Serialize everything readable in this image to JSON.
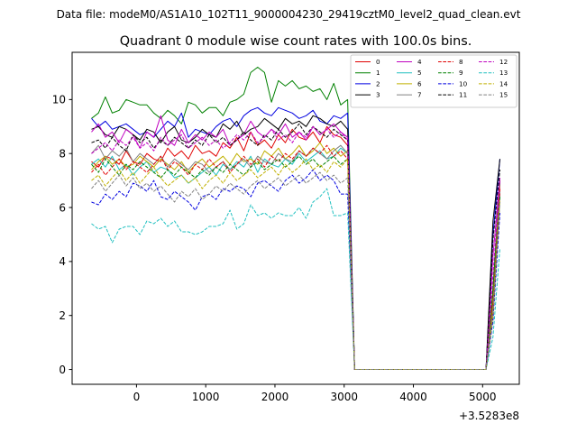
{
  "figure": {
    "suptitle": "Data file: modeM0/AS1A10_102T11_9000004230_29419cztM0_level2_quad_clean.evt"
  },
  "chart_data": {
    "type": "line",
    "title": "Quadrant 0 module wise count rates with 100.0s bins.",
    "xlabel": "",
    "ylabel": "",
    "x_offset_label": "+3.5283e8",
    "x_offset": 352830000,
    "xlim": [
      -930,
      5530
    ],
    "ylim": [
      -0.55,
      11.75
    ],
    "xticks": [
      0,
      1000,
      2000,
      3000,
      4000,
      5000
    ],
    "yticks": [
      0,
      2,
      4,
      6,
      8,
      10
    ],
    "grid": false,
    "legend_position": "top-right",
    "legend_columns": 4,
    "x": [
      -650,
      -550,
      -450,
      -350,
      -250,
      -150,
      -50,
      50,
      150,
      250,
      350,
      450,
      550,
      650,
      750,
      850,
      950,
      1050,
      1150,
      1250,
      1350,
      1450,
      1550,
      1650,
      1750,
      1850,
      1950,
      2050,
      2150,
      2250,
      2350,
      2450,
      2550,
      2650,
      2750,
      2850,
      2950,
      3050,
      3150,
      3250,
      3350,
      3450,
      3550,
      3650,
      3750,
      3850,
      3950,
      4050,
      4150,
      4250,
      4350,
      4450,
      4550,
      4650,
      4750,
      4850,
      4950,
      5050,
      5150,
      5250
    ],
    "series": [
      {
        "name": "0",
        "color": "#e00000",
        "dash": "solid",
        "values": [
          7.7,
          7.5,
          7.9,
          7.8,
          7.6,
          8.1,
          7.7,
          7.6,
          8.0,
          7.8,
          7.7,
          8.2,
          7.9,
          8.1,
          7.8,
          8.3,
          8.0,
          8.1,
          7.9,
          8.4,
          8.2,
          8.6,
          8.1,
          8.8,
          8.3,
          8.5,
          8.2,
          8.7,
          8.4,
          8.9,
          8.6,
          8.5,
          8.8,
          8.4,
          9.0,
          8.7,
          8.6,
          8.3,
          0,
          0,
          0,
          0,
          0,
          0,
          0,
          0,
          0,
          0,
          0,
          0,
          0,
          0,
          0,
          0,
          0,
          0,
          0,
          0,
          2.6,
          7.0
        ]
      },
      {
        "name": "1",
        "color": "#008000",
        "dash": "solid",
        "values": [
          9.3,
          9.5,
          10.1,
          9.5,
          9.6,
          10.0,
          9.9,
          9.8,
          9.8,
          9.5,
          9.3,
          9.6,
          9.4,
          9.1,
          9.9,
          9.8,
          9.5,
          9.7,
          9.7,
          9.4,
          9.9,
          10.0,
          10.2,
          11.0,
          11.2,
          11.0,
          9.9,
          10.7,
          10.5,
          10.7,
          10.4,
          10.5,
          10.3,
          10.4,
          10.0,
          10.6,
          9.8,
          10.0,
          0,
          0,
          0,
          0,
          0,
          0,
          0,
          0,
          0,
          0,
          0,
          0,
          0,
          0,
          0,
          0,
          0,
          0,
          0,
          0,
          3.0,
          7.0
        ]
      },
      {
        "name": "2",
        "color": "#0000e0",
        "dash": "solid",
        "values": [
          9.3,
          9.0,
          9.2,
          8.9,
          9.0,
          9.1,
          8.9,
          8.7,
          8.8,
          8.6,
          8.9,
          9.2,
          9.0,
          9.5,
          8.6,
          8.9,
          8.8,
          8.7,
          9.0,
          9.2,
          9.3,
          9.0,
          9.4,
          9.6,
          9.7,
          9.5,
          9.4,
          9.7,
          9.6,
          9.5,
          9.3,
          9.4,
          9.6,
          9.2,
          9.1,
          9.4,
          9.3,
          9.5,
          0,
          0,
          0,
          0,
          0,
          0,
          0,
          0,
          0,
          0,
          0,
          0,
          0,
          0,
          0,
          0,
          0,
          0,
          0,
          0,
          5.0,
          7.8
        ]
      },
      {
        "name": "3",
        "color": "#000000",
        "dash": "solid",
        "values": [
          8.9,
          9.0,
          8.7,
          8.6,
          9.0,
          8.9,
          8.7,
          8.5,
          8.9,
          8.8,
          8.4,
          8.8,
          9.0,
          8.5,
          8.4,
          8.6,
          8.9,
          8.7,
          8.6,
          9.1,
          8.9,
          9.2,
          8.7,
          8.9,
          9.0,
          9.3,
          9.1,
          8.9,
          9.3,
          9.1,
          9.2,
          9.0,
          9.4,
          9.3,
          9.1,
          9.0,
          9.2,
          8.9,
          0,
          0,
          0,
          0,
          0,
          0,
          0,
          0,
          0,
          0,
          0,
          0,
          0,
          0,
          0,
          0,
          0,
          0,
          0,
          0,
          5.5,
          7.8
        ]
      },
      {
        "name": "4",
        "color": "#c000c0",
        "dash": "solid",
        "values": [
          8.8,
          9.1,
          8.6,
          8.8,
          8.4,
          8.9,
          8.7,
          8.2,
          8.8,
          8.6,
          9.4,
          8.5,
          8.3,
          8.9,
          8.4,
          8.7,
          8.5,
          8.8,
          8.6,
          8.9,
          8.3,
          8.5,
          8.7,
          9.2,
          8.8,
          8.6,
          8.9,
          8.7,
          9.1,
          8.6,
          8.8,
          8.5,
          9.0,
          8.7,
          8.9,
          9.1,
          8.8,
          8.6,
          0,
          0,
          0,
          0,
          0,
          0,
          0,
          0,
          0,
          0,
          0,
          0,
          0,
          0,
          0,
          0,
          0,
          0,
          0,
          0,
          4.2,
          7.1
        ]
      },
      {
        "name": "5",
        "color": "#20c0c0",
        "dash": "solid",
        "values": [
          7.6,
          7.8,
          7.5,
          7.9,
          7.4,
          7.6,
          7.2,
          7.5,
          7.7,
          7.3,
          7.5,
          7.4,
          7.1,
          7.2,
          6.9,
          7.1,
          7.3,
          7.5,
          7.2,
          7.6,
          7.4,
          7.7,
          7.5,
          7.9,
          7.3,
          7.8,
          7.6,
          7.5,
          7.8,
          7.6,
          8.0,
          7.7,
          7.9,
          8.1,
          7.8,
          7.9,
          8.2,
          8.0,
          0,
          0,
          0,
          0,
          0,
          0,
          0,
          0,
          0,
          0,
          0,
          0,
          0,
          0,
          0,
          0,
          0,
          0,
          0,
          0,
          2.0,
          6.5
        ]
      },
      {
        "name": "6",
        "color": "#c0b000",
        "dash": "solid",
        "values": [
          7.4,
          7.7,
          7.9,
          7.6,
          7.8,
          7.5,
          7.6,
          7.9,
          7.7,
          7.5,
          7.8,
          7.6,
          7.4,
          7.7,
          7.3,
          7.6,
          7.8,
          7.5,
          7.7,
          7.9,
          7.6,
          8.0,
          7.7,
          7.8,
          7.6,
          8.1,
          7.9,
          8.2,
          7.8,
          8.0,
          8.3,
          7.9,
          8.1,
          8.4,
          8.0,
          8.2,
          7.9,
          8.1,
          0,
          0,
          0,
          0,
          0,
          0,
          0,
          0,
          0,
          0,
          0,
          0,
          0,
          0,
          0,
          0,
          0,
          0,
          0,
          0,
          2.3,
          6.8
        ]
      },
      {
        "name": "7",
        "color": "#808080",
        "dash": "solid",
        "values": [
          8.0,
          8.3,
          7.8,
          8.1,
          7.9,
          8.2,
          7.7,
          8.0,
          7.8,
          7.6,
          7.9,
          7.5,
          7.8,
          7.6,
          7.4,
          7.7,
          7.6,
          7.3,
          7.5,
          7.7,
          7.4,
          7.6,
          7.8,
          7.5,
          7.9,
          7.7,
          7.6,
          8.0,
          7.8,
          7.7,
          8.1,
          7.9,
          8.2,
          8.0,
          7.8,
          8.1,
          8.3,
          8.0,
          0,
          0,
          0,
          0,
          0,
          0,
          0,
          0,
          0,
          0,
          0,
          0,
          0,
          0,
          0,
          0,
          0,
          0,
          0,
          0,
          2.2,
          6.6
        ]
      },
      {
        "name": "8",
        "color": "#e00000",
        "dash": "dashed",
        "values": [
          7.3,
          7.6,
          7.2,
          7.5,
          7.8,
          7.4,
          7.7,
          7.5,
          7.3,
          7.6,
          7.9,
          7.4,
          7.7,
          7.5,
          7.2,
          7.6,
          7.4,
          7.8,
          7.5,
          7.7,
          7.3,
          7.6,
          7.9,
          7.6,
          7.8,
          7.5,
          7.9,
          7.7,
          8.0,
          7.8,
          8.1,
          7.9,
          8.2,
          8.0,
          8.3,
          7.9,
          8.1,
          7.8,
          0,
          0,
          0,
          0,
          0,
          0,
          0,
          0,
          0,
          0,
          0,
          0,
          0,
          0,
          0,
          0,
          0,
          0,
          0,
          0,
          2.1,
          6.7
        ]
      },
      {
        "name": "9",
        "color": "#008000",
        "dash": "dashed",
        "values": [
          7.6,
          7.3,
          7.8,
          7.5,
          7.2,
          7.6,
          7.4,
          7.7,
          7.5,
          7.3,
          7.1,
          7.4,
          7.2,
          7.5,
          7.3,
          7.1,
          7.4,
          7.2,
          7.5,
          7.3,
          7.6,
          7.4,
          7.2,
          7.5,
          7.7,
          7.4,
          7.6,
          7.8,
          7.5,
          7.7,
          7.9,
          7.6,
          7.8,
          7.5,
          7.7,
          7.9,
          7.6,
          7.8,
          0,
          0,
          0,
          0,
          0,
          0,
          0,
          0,
          0,
          0,
          0,
          0,
          0,
          0,
          0,
          0,
          0,
          0,
          0,
          0,
          2.0,
          6.4
        ]
      },
      {
        "name": "10",
        "color": "#0000e0",
        "dash": "dashed",
        "values": [
          6.2,
          6.1,
          6.5,
          6.3,
          6.6,
          6.4,
          6.9,
          6.8,
          6.6,
          7.0,
          6.4,
          6.3,
          6.6,
          6.4,
          6.2,
          5.9,
          6.4,
          6.5,
          6.3,
          6.7,
          6.6,
          6.8,
          6.7,
          6.4,
          6.9,
          7.0,
          6.8,
          6.6,
          7.0,
          7.2,
          6.9,
          7.1,
          7.4,
          7.0,
          7.2,
          7.0,
          6.5,
          6.5,
          0,
          0,
          0,
          0,
          0,
          0,
          0,
          0,
          0,
          0,
          0,
          0,
          0,
          0,
          0,
          0,
          0,
          0,
          0,
          0,
          1.8,
          5.8
        ]
      },
      {
        "name": "11",
        "color": "#000000",
        "dash": "dashed",
        "values": [
          8.4,
          8.5,
          8.2,
          8.6,
          8.3,
          8.1,
          8.7,
          8.4,
          8.6,
          8.2,
          8.5,
          8.3,
          8.6,
          8.4,
          8.2,
          8.5,
          8.3,
          8.7,
          8.4,
          8.6,
          8.3,
          8.5,
          8.8,
          8.5,
          8.3,
          8.7,
          8.5,
          8.9,
          8.6,
          8.8,
          9.1,
          8.7,
          9.0,
          8.8,
          8.6,
          8.9,
          8.7,
          8.5,
          0,
          0,
          0,
          0,
          0,
          0,
          0,
          0,
          0,
          0,
          0,
          0,
          0,
          0,
          0,
          0,
          0,
          0,
          0,
          0,
          4.8,
          7.4
        ]
      },
      {
        "name": "12",
        "color": "#c000c0",
        "dash": "dashed",
        "values": [
          8.0,
          8.2,
          8.4,
          8.1,
          8.5,
          8.3,
          8.6,
          8.2,
          8.4,
          8.1,
          8.6,
          8.3,
          8.5,
          8.7,
          8.2,
          8.4,
          8.6,
          8.3,
          8.5,
          8.2,
          8.4,
          8.7,
          8.5,
          8.8,
          8.4,
          8.6,
          8.9,
          8.5,
          8.7,
          8.4,
          8.8,
          8.6,
          9.0,
          8.7,
          8.9,
          8.6,
          8.8,
          8.5,
          0,
          0,
          0,
          0,
          0,
          0,
          0,
          0,
          0,
          0,
          0,
          0,
          0,
          0,
          0,
          0,
          0,
          0,
          0,
          0,
          3.5,
          7.0
        ]
      },
      {
        "name": "13",
        "color": "#20c0c0",
        "dash": "dashed",
        "values": [
          5.4,
          5.2,
          5.3,
          4.7,
          5.2,
          5.3,
          5.3,
          5.0,
          5.5,
          5.4,
          5.6,
          5.3,
          5.5,
          5.1,
          5.1,
          5.0,
          5.1,
          5.3,
          5.3,
          5.4,
          5.9,
          5.2,
          5.4,
          6.1,
          5.7,
          5.8,
          5.6,
          5.8,
          5.7,
          5.7,
          6.0,
          5.6,
          6.2,
          6.4,
          6.7,
          5.7,
          5.7,
          5.8,
          0,
          0,
          0,
          0,
          0,
          0,
          0,
          0,
          0,
          0,
          0,
          0,
          0,
          0,
          0,
          0,
          0,
          0,
          0,
          0,
          1.2,
          4.5
        ]
      },
      {
        "name": "14",
        "color": "#c0b000",
        "dash": "dashed",
        "values": [
          7.0,
          7.2,
          6.8,
          7.1,
          7.4,
          7.0,
          7.3,
          6.9,
          7.2,
          7.5,
          7.1,
          6.8,
          7.0,
          7.2,
          6.9,
          7.1,
          6.7,
          7.0,
          7.2,
          6.9,
          7.3,
          7.0,
          7.2,
          7.4,
          7.1,
          7.3,
          7.5,
          7.2,
          7.6,
          7.3,
          7.5,
          7.8,
          7.4,
          7.6,
          7.3,
          7.7,
          7.5,
          7.8,
          0,
          0,
          0,
          0,
          0,
          0,
          0,
          0,
          0,
          0,
          0,
          0,
          0,
          0,
          0,
          0,
          0,
          0,
          0,
          0,
          2.0,
          6.3
        ]
      },
      {
        "name": "15",
        "color": "#808080",
        "dash": "dashed",
        "values": [
          6.7,
          7.0,
          6.6,
          6.9,
          7.2,
          6.8,
          7.1,
          6.7,
          6.9,
          6.6,
          6.8,
          6.5,
          6.2,
          6.6,
          6.4,
          6.7,
          6.3,
          6.5,
          6.8,
          6.6,
          6.9,
          6.7,
          6.5,
          6.8,
          7.0,
          6.7,
          6.9,
          7.1,
          6.8,
          7.0,
          7.2,
          6.9,
          7.1,
          7.3,
          7.0,
          7.2,
          6.9,
          7.1,
          0,
          0,
          0,
          0,
          0,
          0,
          0,
          0,
          0,
          0,
          0,
          0,
          0,
          0,
          0,
          0,
          0,
          0,
          0,
          0,
          2.2,
          6.2
        ]
      }
    ]
  }
}
